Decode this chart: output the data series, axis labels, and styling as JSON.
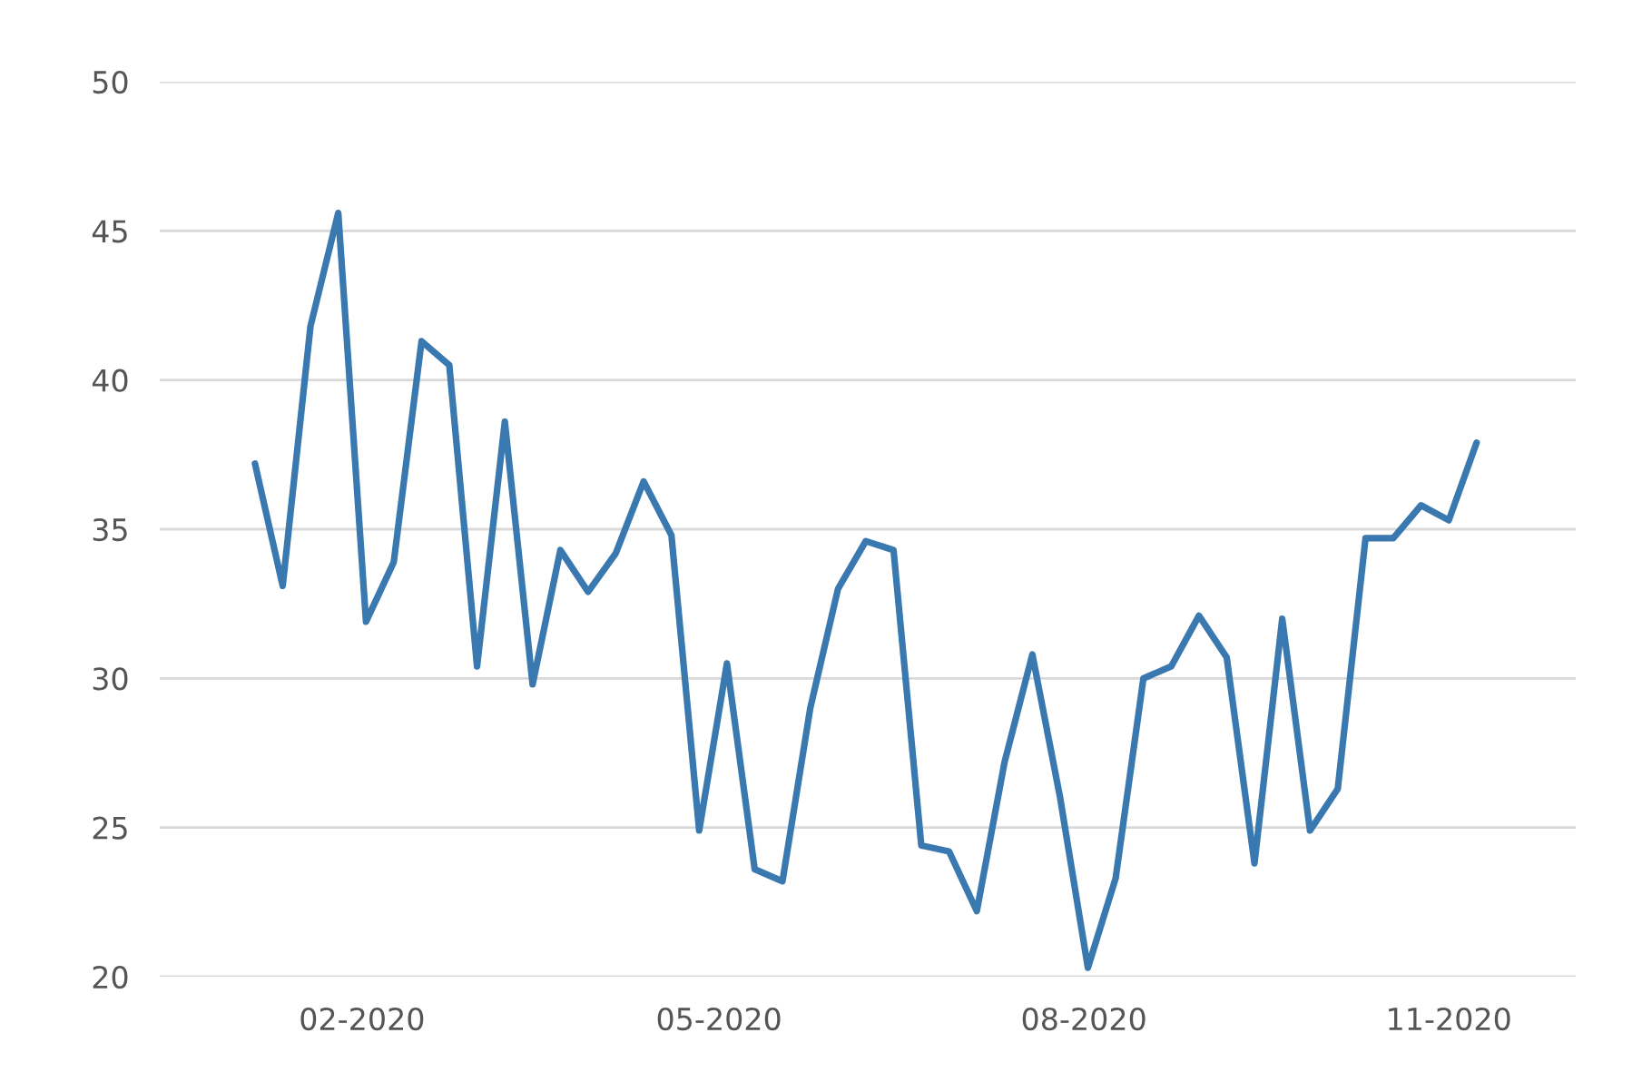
{
  "chart_data": {
    "type": "line",
    "x": [
      "2020-01-05",
      "2020-01-12",
      "2020-01-19",
      "2020-01-26",
      "2020-02-02",
      "2020-02-09",
      "2020-02-16",
      "2020-02-23",
      "2020-03-01",
      "2020-03-08",
      "2020-03-15",
      "2020-03-22",
      "2020-03-29",
      "2020-04-05",
      "2020-04-12",
      "2020-04-19",
      "2020-04-26",
      "2020-05-03",
      "2020-05-10",
      "2020-05-17",
      "2020-05-24",
      "2020-05-31",
      "2020-06-07",
      "2020-06-14",
      "2020-06-21",
      "2020-06-28",
      "2020-07-05",
      "2020-07-12",
      "2020-07-19",
      "2020-07-26",
      "2020-08-02",
      "2020-08-09",
      "2020-08-16",
      "2020-08-23",
      "2020-08-30",
      "2020-09-06",
      "2020-09-13",
      "2020-09-20",
      "2020-09-27",
      "2020-10-04",
      "2020-10-11",
      "2020-10-18",
      "2020-10-25",
      "2020-11-01",
      "2020-11-08"
    ],
    "series": [
      {
        "color": "#3a78b0",
        "values": [
          37.2,
          33.1,
          41.8,
          45.6,
          31.9,
          33.9,
          41.3,
          40.5,
          30.4,
          38.6,
          29.8,
          34.3,
          32.9,
          34.2,
          36.6,
          34.8,
          24.9,
          30.5,
          23.6,
          23.2,
          29.0,
          33.0,
          34.6,
          34.3,
          24.4,
          24.2,
          22.2,
          27.2,
          30.8,
          26.0,
          20.3,
          23.3,
          30.0,
          30.4,
          32.1,
          30.7,
          23.8,
          32.0,
          24.9,
          26.3,
          34.7,
          34.7,
          35.8,
          35.3,
          37.9
        ]
      }
    ],
    "ylim": [
      20,
      50
    ],
    "yticks": [
      20,
      25,
      30,
      35,
      40,
      45,
      50
    ],
    "xlim": [
      "2019-12-12",
      "2020-12-03"
    ],
    "xticks": [
      {
        "value": "2020-02-01",
        "label": "02-2020"
      },
      {
        "value": "2020-05-01",
        "label": "05-2020"
      },
      {
        "value": "2020-08-01",
        "label": "08-2020"
      },
      {
        "value": "2020-11-01",
        "label": "11-2020"
      }
    ],
    "grid": "y",
    "marker": "none",
    "line_style": "solid"
  }
}
